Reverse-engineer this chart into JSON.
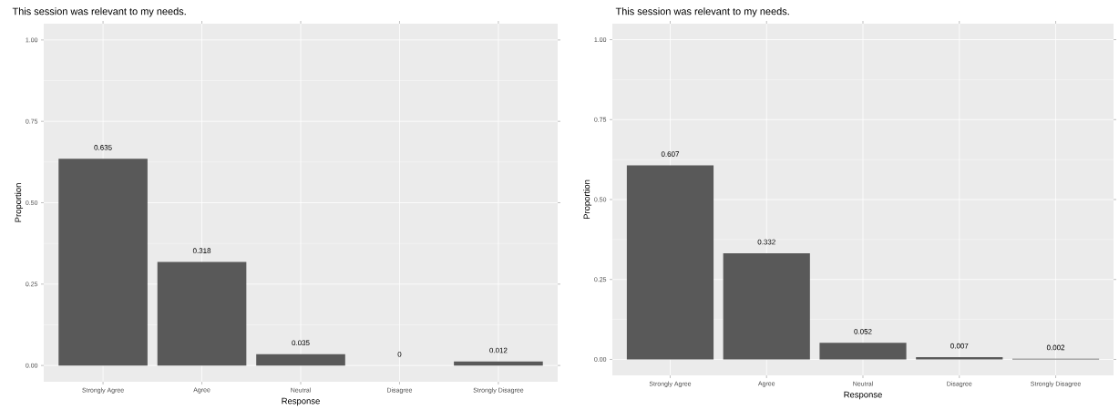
{
  "chart_data": [
    {
      "type": "bar",
      "title": "This session was relevant to my needs.",
      "xlabel": "Response",
      "ylabel": "Proportion",
      "categories": [
        "Strongly Agree",
        "Agree",
        "Neutral",
        "Disagree",
        "Strongly Disagree"
      ],
      "values": [
        0.635,
        0.318,
        0.035,
        0,
        0.012
      ],
      "color": "#595959",
      "ylim": [
        -0.05,
        1.05
      ],
      "yticks": [
        {
          "value": 0,
          "label": "0.00"
        },
        {
          "value": 0.25,
          "label": "0.25"
        },
        {
          "value": 0.5,
          "label": "0.50"
        },
        {
          "value": 0.75,
          "label": "0.75"
        },
        {
          "value": 1,
          "label": "1.00"
        }
      ],
      "grid": true,
      "data_labels": true
    },
    {
      "type": "bar",
      "title": "This session was relevant to my needs.",
      "xlabel": "Response",
      "ylabel": "Proportion",
      "categories": [
        "Strongly Agree",
        "Agree",
        "Neutral",
        "Disagree",
        "Strongly Disagree"
      ],
      "values": [
        0.607,
        0.332,
        0.052,
        0.007,
        0.002
      ],
      "color": "#595959",
      "ylim": [
        -0.05,
        1.05
      ],
      "yticks": [
        {
          "value": 0,
          "label": "0.00"
        },
        {
          "value": 0.25,
          "label": "0.25"
        },
        {
          "value": 0.5,
          "label": "0.50"
        },
        {
          "value": 0.75,
          "label": "0.75"
        },
        {
          "value": 1,
          "label": "1.00"
        }
      ],
      "grid": true,
      "data_labels": true
    }
  ]
}
